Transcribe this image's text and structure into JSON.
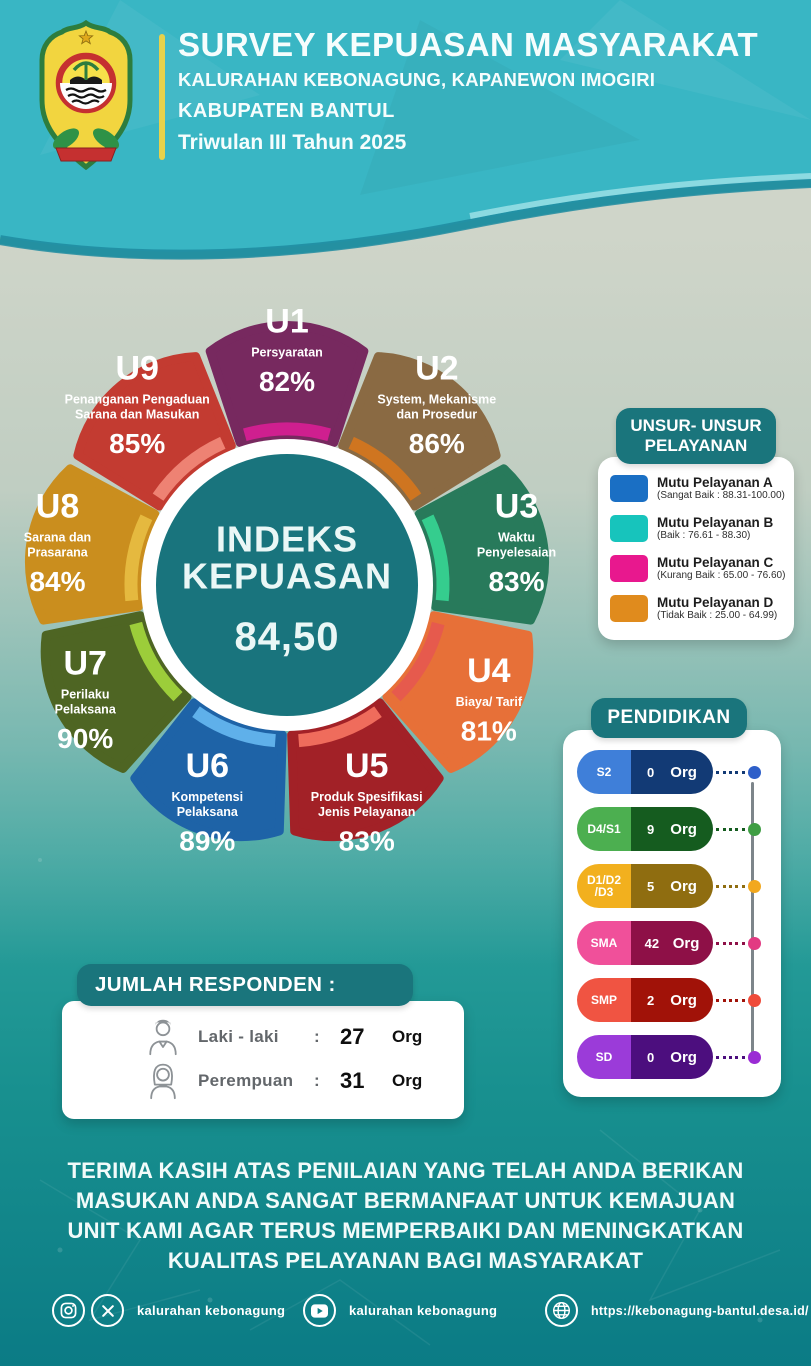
{
  "theme": {
    "top_band": "#39b6c4",
    "panel_teal": "#1a757c",
    "center_circle": "#19747d",
    "background_bottom": "#0b7b85",
    "accent_gold_bar": "#e7d24b"
  },
  "header": {
    "logo": "lambang-kabupaten-bantul",
    "title": "SURVEY KEPUASAN MASYARAKAT",
    "line2": "KALURAHAN KEBONAGUNG, KAPANEWON IMOGIRI",
    "line3": "KABUPATEN BANTUL",
    "line4": "Triwulan III Tahun 2025"
  },
  "chart_data": {
    "type": "pie",
    "style": "donut-9-petals",
    "center_title_lines": [
      "INDEKS",
      "KEPUASAN"
    ],
    "center_value": "84,50",
    "unit": "%",
    "segments": [
      {
        "code": "U1",
        "name_lines": [
          "Persyaratan"
        ],
        "value": 82,
        "color": "#77295f",
        "accent": "#cf1f8f"
      },
      {
        "code": "U2",
        "name_lines": [
          "System, Mekanisme",
          "dan Prosedur"
        ],
        "value": 86,
        "color": "#8a6a43",
        "accent": "#cf7520"
      },
      {
        "code": "U3",
        "name_lines": [
          "Waktu",
          "Penyelesaian"
        ],
        "value": 83,
        "color": "#287a5b",
        "accent": "#35cd8e"
      },
      {
        "code": "U4",
        "name_lines": [
          "Biaya/ Tarif"
        ],
        "value": 81,
        "color": "#e77038",
        "accent": "#e65a4d"
      },
      {
        "code": "U5",
        "name_lines": [
          "Produk Spesifikasi",
          "Jenis Pelayanan"
        ],
        "value": 83,
        "color": "#a22127",
        "accent": "#ef6c5c"
      },
      {
        "code": "U6",
        "name_lines": [
          "Kompetensi",
          "Pelaksana"
        ],
        "value": 89,
        "color": "#1e63a7",
        "accent": "#5fb0ea"
      },
      {
        "code": "U7",
        "name_lines": [
          "Perilaku",
          "Pelaksana"
        ],
        "value": 90,
        "color": "#4e6523",
        "accent": "#9ccd3a"
      },
      {
        "code": "U8",
        "name_lines": [
          "Sarana dan",
          "Prasarana"
        ],
        "value": 84,
        "color": "#ca8e1e",
        "accent": "#e5b93f"
      },
      {
        "code": "U9",
        "name_lines": [
          "Penanganan Pengaduan",
          "Sarana dan Masukan"
        ],
        "value": 85,
        "color": "#c33b31",
        "accent": "#ee8273"
      }
    ]
  },
  "legend": {
    "title_lines": [
      "UNSUR- UNSUR",
      "PELAYANAN"
    ],
    "items": [
      {
        "label": "Mutu Pelayanan A",
        "range": "(Sangat Baik : 88.31-100.00)",
        "color": "#1a6fc4"
      },
      {
        "label": "Mutu Pelayanan B",
        "range": "(Baik : 76.61 - 88.30)",
        "color": "#17c4bc"
      },
      {
        "label": "Mutu Pelayanan C",
        "range": "(Kurang Baik : 65.00 - 76.60)",
        "color": "#e8188e"
      },
      {
        "label": "Mutu Pelayanan D",
        "range": "(Tidak Baik : 25.00 - 64.99)",
        "color": "#e08b1d"
      }
    ]
  },
  "pendidikan": {
    "title": "PENDIDIKAN",
    "unit": "Org",
    "rows": [
      {
        "label_lines": [
          "S2"
        ],
        "value": 0,
        "color_light": "#3f7fd9",
        "color_dark": "#123a75",
        "color_dot": "#2e5fc9"
      },
      {
        "label_lines": [
          "D4/S1"
        ],
        "value": 9,
        "color_light": "#4caf50",
        "color_dark": "#155c1f",
        "color_dot": "#3f9e44"
      },
      {
        "label_lines": [
          "D1/D2",
          "/D3"
        ],
        "value": 5,
        "color_light": "#f2b01e",
        "color_dark": "#8f6d10",
        "color_dot": "#f2a81e"
      },
      {
        "label_lines": [
          "SMA"
        ],
        "value": 42,
        "color_light": "#f0509a",
        "color_dark": "#8e1047",
        "color_dot": "#e23a82"
      },
      {
        "label_lines": [
          "SMP"
        ],
        "value": 2,
        "color_light": "#f05442",
        "color_dark": "#a11208",
        "color_dot": "#ef4b3a"
      },
      {
        "label_lines": [
          "SD"
        ],
        "value": 0,
        "color_light": "#9b3bd9",
        "color_dark": "#4c0e7e",
        "color_dot": "#9a2bd4"
      }
    ]
  },
  "responden": {
    "title": "JUMLAH RESPONDEN :",
    "rows": [
      {
        "icon": "male",
        "label": "Laki - laki",
        "sep": ":",
        "value": 27,
        "unit": "Org"
      },
      {
        "icon": "female",
        "label": "Perempuan",
        "sep": ":",
        "value": 31,
        "unit": "Org"
      }
    ]
  },
  "message": {
    "lines": [
      "TERIMA KASIH ATAS PENILAIAN YANG TELAH ANDA BERIKAN",
      "MASUKAN ANDA SANGAT BERMANFAAT UNTUK KEMAJUAN",
      "UNIT KAMI AGAR TERUS MEMPERBAIKI DAN MENINGKATKAN",
      "KUALITAS PELAYANAN BAGI MASYARAKAT"
    ]
  },
  "footer": {
    "groups": [
      {
        "icons": [
          "instagram",
          "x-twitter"
        ],
        "label": "kalurahan kebonagung"
      },
      {
        "icons": [
          "youtube"
        ],
        "label": "kalurahan kebonagung"
      },
      {
        "icons": [
          "globe"
        ],
        "label": "https://kebonagung-bantul.desa.id/"
      }
    ]
  }
}
